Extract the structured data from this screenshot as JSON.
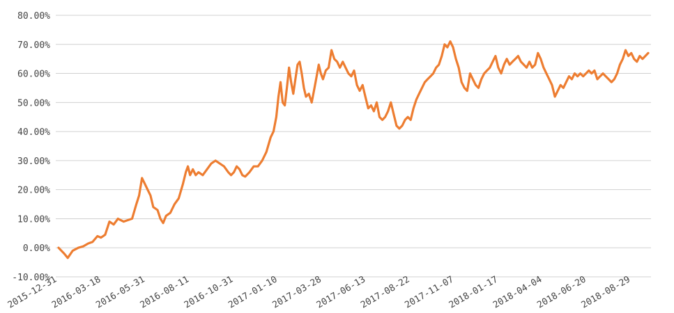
{
  "colors": {
    "series": "#ED7D31",
    "grid": "#d0d0d0",
    "text": "#444444"
  },
  "chart_data": {
    "type": "line",
    "title": "",
    "xlabel": "",
    "ylabel": "",
    "ylim": [
      -0.1,
      0.8
    ],
    "y_ticks": [
      -0.1,
      0.0,
      0.1,
      0.2,
      0.3,
      0.4,
      0.5,
      0.6,
      0.7,
      0.8
    ],
    "y_tick_labels": [
      "-10.00%",
      "0.00%",
      "10.00%",
      "20.00%",
      "30.00%",
      "40.00%",
      "50.00%",
      "60.00%",
      "70.00%",
      "80.00%"
    ],
    "x_ticks": [
      "2015-12-31",
      "2016-03-18",
      "2016-05-31",
      "2016-08-11",
      "2016-10-31",
      "2017-01-10",
      "2017-03-28",
      "2017-06-13",
      "2017-08-22",
      "2017-11-07",
      "2018-01-17",
      "2018-04-04",
      "2018-06-20",
      "2018-08-29"
    ],
    "grid": true,
    "legend": "none",
    "series": [
      {
        "values": [
          [
            0,
            0.0
          ],
          [
            8,
            -0.02
          ],
          [
            13,
            -0.035
          ],
          [
            20,
            -0.01
          ],
          [
            28,
            0.0
          ],
          [
            35,
            0.005
          ],
          [
            42,
            0.015
          ],
          [
            48,
            0.02
          ],
          [
            55,
            0.04
          ],
          [
            60,
            0.035
          ],
          [
            66,
            0.045
          ],
          [
            72,
            0.09
          ],
          [
            78,
            0.08
          ],
          [
            84,
            0.1
          ],
          [
            92,
            0.09
          ],
          [
            98,
            0.095
          ],
          [
            104,
            0.1
          ],
          [
            110,
            0.15
          ],
          [
            114,
            0.18
          ],
          [
            118,
            0.24
          ],
          [
            122,
            0.22
          ],
          [
            126,
            0.2
          ],
          [
            130,
            0.18
          ],
          [
            134,
            0.14
          ],
          [
            140,
            0.13
          ],
          [
            144,
            0.1
          ],
          [
            148,
            0.085
          ],
          [
            152,
            0.11
          ],
          [
            158,
            0.12
          ],
          [
            164,
            0.15
          ],
          [
            170,
            0.17
          ],
          [
            176,
            0.22
          ],
          [
            180,
            0.26
          ],
          [
            183,
            0.28
          ],
          [
            186,
            0.25
          ],
          [
            190,
            0.27
          ],
          [
            194,
            0.25
          ],
          [
            198,
            0.26
          ],
          [
            204,
            0.25
          ],
          [
            210,
            0.27
          ],
          [
            216,
            0.29
          ],
          [
            222,
            0.3
          ],
          [
            228,
            0.29
          ],
          [
            234,
            0.28
          ],
          [
            240,
            0.26
          ],
          [
            244,
            0.25
          ],
          [
            248,
            0.26
          ],
          [
            252,
            0.28
          ],
          [
            256,
            0.27
          ],
          [
            260,
            0.25
          ],
          [
            264,
            0.245
          ],
          [
            270,
            0.26
          ],
          [
            276,
            0.28
          ],
          [
            282,
            0.28
          ],
          [
            288,
            0.3
          ],
          [
            294,
            0.33
          ],
          [
            300,
            0.38
          ],
          [
            304,
            0.4
          ],
          [
            308,
            0.45
          ],
          [
            311,
            0.52
          ],
          [
            314,
            0.57
          ],
          [
            317,
            0.5
          ],
          [
            320,
            0.49
          ],
          [
            323,
            0.55
          ],
          [
            326,
            0.62
          ],
          [
            329,
            0.57
          ],
          [
            332,
            0.53
          ],
          [
            335,
            0.58
          ],
          [
            338,
            0.63
          ],
          [
            341,
            0.64
          ],
          [
            344,
            0.6
          ],
          [
            347,
            0.55
          ],
          [
            350,
            0.52
          ],
          [
            354,
            0.53
          ],
          [
            358,
            0.5
          ],
          [
            362,
            0.55
          ],
          [
            365,
            0.59
          ],
          [
            368,
            0.63
          ],
          [
            371,
            0.6
          ],
          [
            374,
            0.58
          ],
          [
            378,
            0.61
          ],
          [
            382,
            0.62
          ],
          [
            386,
            0.68
          ],
          [
            390,
            0.65
          ],
          [
            394,
            0.64
          ],
          [
            398,
            0.62
          ],
          [
            402,
            0.64
          ],
          [
            406,
            0.62
          ],
          [
            410,
            0.6
          ],
          [
            414,
            0.59
          ],
          [
            418,
            0.61
          ],
          [
            422,
            0.56
          ],
          [
            426,
            0.54
          ],
          [
            430,
            0.56
          ],
          [
            434,
            0.52
          ],
          [
            438,
            0.48
          ],
          [
            442,
            0.49
          ],
          [
            446,
            0.47
          ],
          [
            450,
            0.5
          ],
          [
            454,
            0.45
          ],
          [
            458,
            0.44
          ],
          [
            462,
            0.45
          ],
          [
            466,
            0.47
          ],
          [
            470,
            0.5
          ],
          [
            474,
            0.46
          ],
          [
            478,
            0.42
          ],
          [
            482,
            0.41
          ],
          [
            486,
            0.42
          ],
          [
            490,
            0.44
          ],
          [
            494,
            0.45
          ],
          [
            498,
            0.44
          ],
          [
            502,
            0.48
          ],
          [
            506,
            0.51
          ],
          [
            510,
            0.53
          ],
          [
            514,
            0.55
          ],
          [
            518,
            0.57
          ],
          [
            522,
            0.58
          ],
          [
            526,
            0.59
          ],
          [
            530,
            0.6
          ],
          [
            534,
            0.62
          ],
          [
            538,
            0.63
          ],
          [
            542,
            0.66
          ],
          [
            546,
            0.7
          ],
          [
            550,
            0.69
          ],
          [
            554,
            0.71
          ],
          [
            558,
            0.69
          ],
          [
            562,
            0.65
          ],
          [
            566,
            0.62
          ],
          [
            570,
            0.57
          ],
          [
            574,
            0.55
          ],
          [
            578,
            0.54
          ],
          [
            582,
            0.6
          ],
          [
            586,
            0.58
          ],
          [
            590,
            0.56
          ],
          [
            594,
            0.55
          ],
          [
            598,
            0.58
          ],
          [
            602,
            0.6
          ],
          [
            606,
            0.61
          ],
          [
            610,
            0.62
          ],
          [
            614,
            0.64
          ],
          [
            618,
            0.66
          ],
          [
            622,
            0.62
          ],
          [
            626,
            0.6
          ],
          [
            630,
            0.63
          ],
          [
            634,
            0.65
          ],
          [
            638,
            0.63
          ],
          [
            642,
            0.64
          ],
          [
            646,
            0.65
          ],
          [
            650,
            0.66
          ],
          [
            654,
            0.64
          ],
          [
            658,
            0.63
          ],
          [
            662,
            0.62
          ],
          [
            666,
            0.64
          ],
          [
            670,
            0.62
          ],
          [
            674,
            0.63
          ],
          [
            678,
            0.67
          ],
          [
            682,
            0.65
          ],
          [
            686,
            0.62
          ],
          [
            690,
            0.6
          ],
          [
            694,
            0.58
          ],
          [
            698,
            0.56
          ],
          [
            702,
            0.52
          ],
          [
            706,
            0.54
          ],
          [
            710,
            0.56
          ],
          [
            714,
            0.55
          ],
          [
            718,
            0.57
          ],
          [
            722,
            0.59
          ],
          [
            726,
            0.58
          ],
          [
            730,
            0.6
          ],
          [
            734,
            0.59
          ],
          [
            738,
            0.6
          ],
          [
            742,
            0.59
          ],
          [
            746,
            0.6
          ],
          [
            750,
            0.61
          ],
          [
            754,
            0.6
          ],
          [
            758,
            0.61
          ],
          [
            762,
            0.58
          ],
          [
            766,
            0.59
          ],
          [
            770,
            0.6
          ],
          [
            774,
            0.59
          ],
          [
            778,
            0.58
          ],
          [
            782,
            0.57
          ],
          [
            786,
            0.58
          ],
          [
            790,
            0.6
          ],
          [
            794,
            0.63
          ],
          [
            798,
            0.65
          ],
          [
            802,
            0.68
          ],
          [
            806,
            0.66
          ],
          [
            810,
            0.67
          ],
          [
            814,
            0.65
          ],
          [
            818,
            0.64
          ],
          [
            822,
            0.66
          ],
          [
            826,
            0.65
          ],
          [
            830,
            0.66
          ],
          [
            834,
            0.67
          ]
        ]
      }
    ]
  }
}
